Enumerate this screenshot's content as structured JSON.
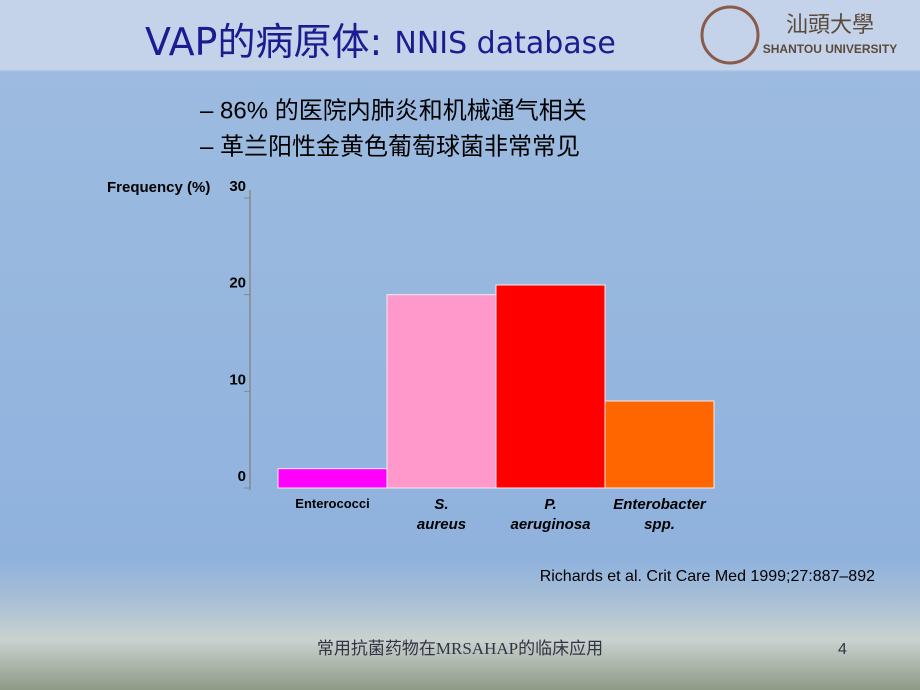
{
  "slide": {
    "title_cn": "VAP的病原体:",
    "title_en": "NNIS database",
    "logo": {
      "chinese": "汕頭大學",
      "english": "SHANTOU UNIVERSITY"
    },
    "bullets": [
      "– 86% 的医院内肺炎和机械通气相关",
      "– 革兰阳性金黄色葡萄球菌非常常见"
    ],
    "citation": "Richards et al. Crit Care Med 1999;27:887–892",
    "footer": "常用抗菌药物在MRSAHAP的临床应用",
    "page_number": 4
  },
  "chart_data": {
    "type": "bar",
    "y_label": "Frequency (%)",
    "categories": [
      "Enterococci",
      "S. aureus",
      "P. aeruginosa",
      "Enterobacter spp."
    ],
    "values": [
      2,
      20,
      21,
      9
    ],
    "colors": [
      "#ff00ff",
      "#ff99cc",
      "#ff0000",
      "#ff6600"
    ],
    "ylim": [
      0,
      30
    ],
    "yticks": [
      0,
      10,
      20,
      30
    ]
  }
}
